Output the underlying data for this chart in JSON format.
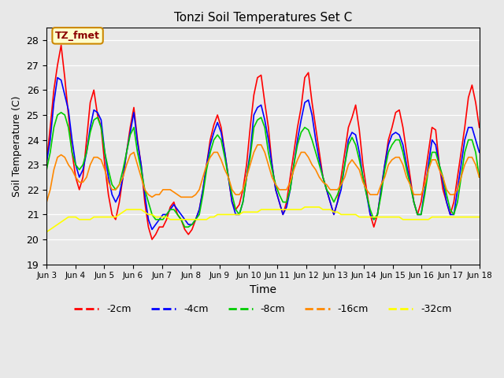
{
  "title": "Tonzi Soil Temperatures Set C",
  "xlabel": "Time",
  "ylabel": "Soil Temperature (C)",
  "ylim": [
    19.0,
    28.5
  ],
  "yticks": [
    19.0,
    20.0,
    21.0,
    22.0,
    23.0,
    24.0,
    25.0,
    26.0,
    27.0,
    28.0
  ],
  "xtick_labels": [
    "Jun 3",
    "Jun 4",
    "Jun 5",
    "Jun 6",
    "Jun 7",
    "Jun 8",
    "Jun 9",
    "Jun 10",
    "Jun 11",
    "Jun 12",
    "Jun 13",
    "Jun 14",
    "Jun 15",
    "Jun 16",
    "Jun 17",
    "Jun 18"
  ],
  "annotation_text": "TZ_fmet",
  "bg_color": "#e8e8e8",
  "legend": [
    {
      "label": "-2cm",
      "color": "#ff0000"
    },
    {
      "label": "-4cm",
      "color": "#0000ff"
    },
    {
      "label": "-8cm",
      "color": "#00cc00"
    },
    {
      "label": "-16cm",
      "color": "#ff8800"
    },
    {
      "label": "-32cm",
      "color": "#ffff00"
    }
  ],
  "series": {
    "d2cm": [
      23.1,
      24.5,
      26.0,
      27.0,
      27.8,
      26.5,
      25.0,
      23.5,
      22.5,
      22.0,
      22.5,
      24.0,
      25.5,
      26.0,
      25.0,
      24.5,
      23.0,
      21.8,
      21.0,
      20.8,
      21.5,
      22.5,
      23.5,
      24.5,
      25.3,
      24.0,
      23.0,
      21.5,
      20.5,
      20.0,
      20.2,
      20.5,
      20.5,
      20.8,
      21.3,
      21.5,
      21.0,
      20.8,
      20.4,
      20.2,
      20.4,
      20.8,
      21.2,
      22.0,
      23.0,
      24.0,
      24.6,
      25.0,
      24.5,
      23.5,
      22.5,
      21.5,
      21.2,
      21.4,
      22.0,
      23.0,
      24.5,
      25.8,
      26.5,
      26.6,
      25.5,
      24.5,
      23.0,
      22.0,
      21.5,
      21.0,
      21.5,
      22.5,
      23.5,
      24.5,
      25.3,
      26.5,
      26.7,
      25.5,
      24.5,
      23.5,
      22.5,
      22.0,
      21.5,
      21.0,
      21.5,
      22.5,
      23.5,
      24.5,
      24.9,
      25.4,
      24.4,
      23.0,
      22.0,
      21.0,
      20.5,
      21.0,
      22.0,
      23.0,
      24.0,
      24.5,
      25.1,
      25.2,
      24.5,
      23.5,
      22.5,
      21.5,
      21.0,
      21.5,
      22.5,
      23.5,
      24.5,
      24.4,
      23.0,
      22.0,
      21.5,
      21.0,
      21.5,
      22.5,
      23.5,
      24.5,
      25.7,
      26.2,
      25.5,
      24.5
    ],
    "d4cm": [
      23.1,
      24.0,
      25.5,
      26.5,
      26.4,
      25.8,
      25.2,
      24.0,
      23.0,
      22.5,
      22.8,
      23.5,
      24.5,
      25.2,
      25.1,
      24.8,
      23.5,
      22.5,
      21.8,
      21.5,
      21.8,
      22.5,
      23.5,
      24.3,
      25.1,
      23.9,
      23.0,
      21.8,
      20.8,
      20.4,
      20.6,
      20.8,
      21.0,
      21.0,
      21.2,
      21.4,
      21.2,
      21.0,
      20.8,
      20.6,
      20.6,
      20.8,
      21.2,
      22.0,
      23.0,
      23.8,
      24.3,
      24.7,
      24.3,
      23.5,
      22.5,
      21.5,
      21.0,
      21.0,
      21.5,
      22.5,
      23.5,
      25.0,
      25.3,
      25.4,
      24.8,
      24.0,
      23.0,
      22.0,
      21.5,
      21.0,
      21.3,
      22.0,
      23.0,
      24.0,
      24.8,
      25.5,
      25.6,
      25.0,
      24.0,
      23.2,
      22.5,
      22.0,
      21.5,
      21.0,
      21.5,
      22.0,
      23.0,
      24.0,
      24.3,
      24.2,
      23.5,
      22.5,
      21.8,
      21.0,
      20.8,
      21.0,
      22.0,
      23.0,
      23.8,
      24.2,
      24.3,
      24.2,
      23.8,
      23.0,
      22.3,
      21.5,
      21.0,
      21.0,
      22.0,
      23.0,
      24.0,
      23.8,
      23.0,
      22.3,
      21.5,
      21.0,
      21.0,
      22.0,
      23.0,
      24.0,
      24.5,
      24.5,
      24.0,
      23.5
    ],
    "d8cm": [
      22.8,
      23.5,
      24.5,
      25.0,
      25.1,
      25.0,
      24.5,
      23.5,
      23.0,
      22.8,
      23.0,
      23.5,
      24.3,
      24.8,
      24.9,
      24.5,
      23.5,
      22.8,
      22.2,
      22.0,
      22.2,
      22.8,
      23.5,
      24.2,
      24.5,
      23.5,
      22.8,
      22.0,
      21.5,
      21.0,
      20.8,
      20.8,
      20.8,
      21.0,
      21.2,
      21.2,
      21.0,
      20.8,
      20.5,
      20.5,
      20.6,
      20.8,
      21.0,
      21.8,
      22.8,
      23.5,
      24.0,
      24.2,
      24.0,
      23.3,
      22.5,
      21.8,
      21.2,
      21.0,
      21.5,
      22.5,
      23.3,
      24.5,
      24.8,
      24.9,
      24.5,
      23.5,
      22.8,
      22.2,
      21.8,
      21.5,
      21.5,
      22.0,
      23.0,
      23.8,
      24.3,
      24.5,
      24.4,
      24.0,
      23.5,
      23.0,
      22.5,
      22.0,
      21.8,
      21.5,
      21.8,
      22.2,
      23.0,
      23.8,
      24.1,
      23.8,
      23.2,
      22.5,
      21.8,
      21.2,
      20.8,
      21.0,
      21.8,
      22.8,
      23.5,
      23.8,
      24.0,
      24.0,
      23.5,
      22.8,
      22.2,
      21.5,
      21.0,
      21.0,
      21.8,
      22.8,
      23.5,
      23.5,
      23.0,
      22.5,
      21.8,
      21.2,
      21.0,
      21.5,
      22.5,
      23.5,
      24.0,
      24.0,
      23.5,
      22.5
    ],
    "d16cm": [
      21.5,
      22.0,
      22.8,
      23.3,
      23.4,
      23.3,
      23.0,
      22.8,
      22.5,
      22.3,
      22.3,
      22.5,
      23.0,
      23.3,
      23.3,
      23.2,
      22.8,
      22.3,
      22.0,
      22.0,
      22.2,
      22.5,
      23.0,
      23.4,
      23.5,
      23.0,
      22.5,
      22.0,
      21.8,
      21.7,
      21.8,
      21.8,
      22.0,
      22.0,
      22.0,
      21.9,
      21.8,
      21.7,
      21.7,
      21.7,
      21.7,
      21.8,
      22.0,
      22.5,
      23.0,
      23.3,
      23.5,
      23.5,
      23.2,
      22.8,
      22.5,
      22.0,
      21.8,
      21.8,
      22.0,
      22.5,
      23.0,
      23.5,
      23.8,
      23.8,
      23.5,
      23.0,
      22.5,
      22.2,
      22.0,
      22.0,
      22.0,
      22.3,
      22.8,
      23.2,
      23.5,
      23.5,
      23.3,
      23.0,
      22.8,
      22.5,
      22.3,
      22.2,
      22.0,
      22.0,
      22.0,
      22.2,
      22.5,
      23.0,
      23.2,
      23.0,
      22.8,
      22.3,
      22.0,
      21.8,
      21.8,
      21.8,
      22.2,
      22.5,
      23.0,
      23.2,
      23.3,
      23.3,
      23.0,
      22.5,
      22.2,
      21.8,
      21.8,
      21.8,
      22.2,
      22.8,
      23.2,
      23.2,
      22.8,
      22.5,
      22.0,
      21.8,
      21.8,
      22.0,
      22.5,
      23.0,
      23.3,
      23.3,
      23.0,
      22.5
    ],
    "d32cm": [
      20.3,
      20.4,
      20.5,
      20.6,
      20.7,
      20.8,
      20.9,
      20.9,
      20.9,
      20.8,
      20.8,
      20.8,
      20.8,
      20.9,
      20.9,
      20.9,
      20.9,
      20.9,
      20.9,
      20.9,
      21.0,
      21.1,
      21.2,
      21.2,
      21.2,
      21.2,
      21.2,
      21.1,
      21.0,
      21.0,
      20.9,
      20.9,
      20.9,
      20.9,
      20.8,
      20.8,
      20.8,
      20.8,
      20.8,
      20.8,
      20.8,
      20.8,
      20.8,
      20.8,
      20.8,
      20.9,
      20.9,
      21.0,
      21.0,
      21.0,
      21.0,
      21.0,
      21.0,
      21.0,
      21.1,
      21.1,
      21.1,
      21.1,
      21.1,
      21.2,
      21.2,
      21.2,
      21.2,
      21.2,
      21.2,
      21.2,
      21.2,
      21.2,
      21.2,
      21.2,
      21.2,
      21.3,
      21.3,
      21.3,
      21.3,
      21.3,
      21.2,
      21.2,
      21.2,
      21.1,
      21.1,
      21.0,
      21.0,
      21.0,
      21.0,
      21.0,
      20.9,
      20.9,
      20.9,
      20.9,
      20.9,
      20.9,
      20.9,
      20.9,
      20.9,
      20.9,
      20.9,
      20.9,
      20.8,
      20.8,
      20.8,
      20.8,
      20.8,
      20.8,
      20.8,
      20.8,
      20.9,
      20.9,
      20.9,
      20.9,
      20.9,
      20.9,
      20.9,
      20.9,
      20.9,
      20.9,
      20.9,
      20.9,
      20.9,
      20.9
    ]
  }
}
